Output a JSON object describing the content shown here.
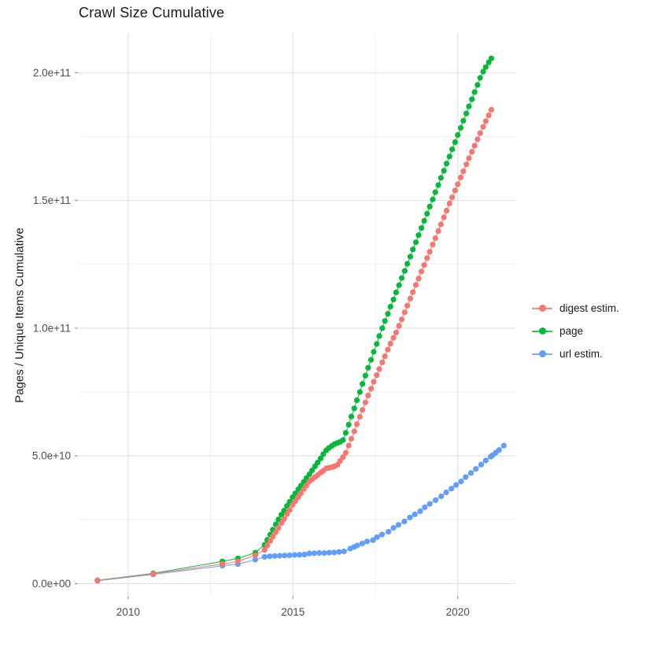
{
  "chart": {
    "title": "Crawl Size Cumulative",
    "y_axis_title": "Pages / Unique Items Cumulative"
  },
  "chart_data": {
    "type": "line",
    "title": "Crawl Size Cumulative",
    "xlabel": "",
    "ylabel": "Pages / Unique Items Cumulative",
    "grid": true,
    "legend_position": "right",
    "values_unit": "1e9",
    "xlim": [
      2008.5,
      2021.75
    ],
    "ylim_e9": [
      -4.5,
      215.5
    ],
    "x_ticks": [
      {
        "value": 2010,
        "label": "2010"
      },
      {
        "value": 2015,
        "label": "2015"
      },
      {
        "value": 2020,
        "label": "2020"
      }
    ],
    "x_minor_ticks": [
      2012.5,
      2017.5
    ],
    "y_ticks": [
      {
        "value_e9": 0,
        "label": "0.0e+00"
      },
      {
        "value_e9": 50,
        "label": "5.0e+10"
      },
      {
        "value_e9": 100,
        "label": "1.0e+11"
      },
      {
        "value_e9": 150,
        "label": "1.5e+11"
      },
      {
        "value_e9": 200,
        "label": "2.0e+11"
      }
    ],
    "y_minor_ticks_e9": [
      25,
      75,
      125,
      175
    ],
    "series": [
      {
        "name": "digest estim.",
        "color": "#F8766D",
        "points": [
          [
            2009.07,
            1.2
          ],
          [
            2010.76,
            3.8
          ],
          [
            2012.86,
            7.7
          ],
          [
            2013.33,
            8.7
          ],
          [
            2013.86,
            11.1
          ],
          [
            2014.14,
            13.2
          ],
          [
            2014.22,
            14.9
          ],
          [
            2014.31,
            16.7
          ],
          [
            2014.39,
            18.4
          ],
          [
            2014.48,
            20.2
          ],
          [
            2014.56,
            21.8
          ],
          [
            2014.65,
            23.7
          ],
          [
            2014.73,
            25.3
          ],
          [
            2014.82,
            27.2
          ],
          [
            2014.9,
            28.8
          ],
          [
            2014.99,
            30.8
          ],
          [
            2015.07,
            32.3
          ],
          [
            2015.16,
            33.9
          ],
          [
            2015.24,
            35.3
          ],
          [
            2015.33,
            37.0
          ],
          [
            2015.41,
            38.4
          ],
          [
            2015.5,
            40.0
          ],
          [
            2015.58,
            40.8
          ],
          [
            2015.67,
            41.7
          ],
          [
            2015.75,
            42.5
          ],
          [
            2015.84,
            43.4
          ],
          [
            2015.92,
            44.2
          ],
          [
            2016.01,
            45.1
          ],
          [
            2016.09,
            45.3
          ],
          [
            2016.18,
            45.6
          ],
          [
            2016.26,
            45.9
          ],
          [
            2016.35,
            46.5
          ],
          [
            2016.43,
            48.0
          ],
          [
            2016.52,
            49.5
          ],
          [
            2016.6,
            51.2
          ],
          [
            2016.69,
            54.0
          ],
          [
            2016.77,
            56.7
          ],
          [
            2016.86,
            59.6
          ],
          [
            2016.94,
            62.4
          ],
          [
            2017.03,
            65.3
          ],
          [
            2017.11,
            68.0
          ],
          [
            2017.2,
            70.9
          ],
          [
            2017.28,
            73.6
          ],
          [
            2017.37,
            76.3
          ],
          [
            2017.45,
            79.0
          ],
          [
            2017.54,
            81.6
          ],
          [
            2017.62,
            84.0
          ],
          [
            2017.71,
            86.6
          ],
          [
            2017.79,
            89.0
          ],
          [
            2017.88,
            91.6
          ],
          [
            2017.96,
            93.9
          ],
          [
            2018.05,
            96.2
          ],
          [
            2018.13,
            98.3
          ],
          [
            2018.22,
            100.9
          ],
          [
            2018.3,
            103.4
          ],
          [
            2018.39,
            106.2
          ],
          [
            2018.47,
            108.8
          ],
          [
            2018.56,
            111.6
          ],
          [
            2018.64,
            114.1
          ],
          [
            2018.73,
            116.9
          ],
          [
            2018.81,
            119.4
          ],
          [
            2018.9,
            122.2
          ],
          [
            2018.98,
            124.7
          ],
          [
            2019.07,
            127.4
          ],
          [
            2019.15,
            129.9
          ],
          [
            2019.24,
            132.7
          ],
          [
            2019.32,
            135.2
          ],
          [
            2019.41,
            138.0
          ],
          [
            2019.49,
            140.6
          ],
          [
            2019.58,
            143.4
          ],
          [
            2019.66,
            146.0
          ],
          [
            2019.75,
            148.8
          ],
          [
            2019.83,
            151.2
          ],
          [
            2019.92,
            153.9
          ],
          [
            2020.0,
            156.3
          ],
          [
            2020.09,
            159.0
          ],
          [
            2020.17,
            161.4
          ],
          [
            2020.26,
            164.1
          ],
          [
            2020.34,
            166.5
          ],
          [
            2020.43,
            169.0
          ],
          [
            2020.51,
            171.4
          ],
          [
            2020.6,
            173.9
          ],
          [
            2020.68,
            176.3
          ],
          [
            2020.77,
            178.8
          ],
          [
            2020.85,
            181.0
          ],
          [
            2020.94,
            183.3
          ],
          [
            2021.02,
            185.5
          ]
        ]
      },
      {
        "name": "page",
        "color": "#00BA38",
        "points": [
          [
            2009.07,
            1.3
          ],
          [
            2010.76,
            4.0
          ],
          [
            2012.86,
            8.7
          ],
          [
            2013.33,
            9.9
          ],
          [
            2013.86,
            12.1
          ],
          [
            2014.14,
            15.2
          ],
          [
            2014.22,
            17.1
          ],
          [
            2014.31,
            19.2
          ],
          [
            2014.39,
            21.1
          ],
          [
            2014.48,
            23.2
          ],
          [
            2014.56,
            25.1
          ],
          [
            2014.65,
            27.0
          ],
          [
            2014.73,
            28.6
          ],
          [
            2014.82,
            30.4
          ],
          [
            2014.9,
            32.0
          ],
          [
            2014.99,
            33.8
          ],
          [
            2015.07,
            35.3
          ],
          [
            2015.16,
            36.9
          ],
          [
            2015.24,
            38.3
          ],
          [
            2015.33,
            39.8
          ],
          [
            2015.41,
            41.3
          ],
          [
            2015.5,
            42.8
          ],
          [
            2015.58,
            44.3
          ],
          [
            2015.67,
            45.9
          ],
          [
            2015.75,
            47.4
          ],
          [
            2015.84,
            49.0
          ],
          [
            2015.92,
            50.7
          ],
          [
            2016.01,
            52.2
          ],
          [
            2016.09,
            53.1
          ],
          [
            2016.18,
            53.9
          ],
          [
            2016.26,
            54.6
          ],
          [
            2016.35,
            55.1
          ],
          [
            2016.43,
            55.5
          ],
          [
            2016.52,
            56.2
          ],
          [
            2016.6,
            59.0
          ],
          [
            2016.69,
            62.2
          ],
          [
            2016.77,
            65.4
          ],
          [
            2016.86,
            68.6
          ],
          [
            2016.94,
            71.8
          ],
          [
            2017.03,
            75.0
          ],
          [
            2017.11,
            78.2
          ],
          [
            2017.2,
            81.4
          ],
          [
            2017.28,
            84.5
          ],
          [
            2017.37,
            87.6
          ],
          [
            2017.45,
            90.7
          ],
          [
            2017.54,
            93.8
          ],
          [
            2017.62,
            96.9
          ],
          [
            2017.71,
            100.0
          ],
          [
            2017.79,
            102.8
          ],
          [
            2017.88,
            105.6
          ],
          [
            2017.96,
            108.4
          ],
          [
            2018.05,
            111.2
          ],
          [
            2018.13,
            114.0
          ],
          [
            2018.22,
            116.8
          ],
          [
            2018.3,
            119.6
          ],
          [
            2018.39,
            122.4
          ],
          [
            2018.47,
            125.2
          ],
          [
            2018.56,
            128.0
          ],
          [
            2018.64,
            130.8
          ],
          [
            2018.73,
            133.6
          ],
          [
            2018.81,
            136.4
          ],
          [
            2018.9,
            139.2
          ],
          [
            2018.98,
            142.0
          ],
          [
            2019.07,
            144.8
          ],
          [
            2019.15,
            147.6
          ],
          [
            2019.24,
            150.4
          ],
          [
            2019.32,
            153.2
          ],
          [
            2019.41,
            156.0
          ],
          [
            2019.49,
            158.8
          ],
          [
            2019.58,
            161.6
          ],
          [
            2019.66,
            164.4
          ],
          [
            2019.75,
            167.2
          ],
          [
            2019.83,
            170.0
          ],
          [
            2019.92,
            172.8
          ],
          [
            2020.0,
            175.6
          ],
          [
            2020.09,
            178.4
          ],
          [
            2020.17,
            181.2
          ],
          [
            2020.26,
            184.0
          ],
          [
            2020.34,
            186.8
          ],
          [
            2020.43,
            189.6
          ],
          [
            2020.51,
            192.4
          ],
          [
            2020.6,
            195.2
          ],
          [
            2020.68,
            198.0
          ],
          [
            2020.77,
            200.4
          ],
          [
            2020.85,
            202.2
          ],
          [
            2020.94,
            204.0
          ],
          [
            2021.02,
            205.6
          ]
        ]
      },
      {
        "name": "url estim.",
        "color": "#619CFF",
        "points": [
          [
            2009.07,
            1.1
          ],
          [
            2010.76,
            3.6
          ],
          [
            2012.86,
            7.0
          ],
          [
            2013.33,
            7.6
          ],
          [
            2013.86,
            9.4
          ],
          [
            2014.14,
            10.5
          ],
          [
            2014.3,
            10.7
          ],
          [
            2014.45,
            10.8
          ],
          [
            2014.6,
            10.9
          ],
          [
            2014.75,
            11.0
          ],
          [
            2014.9,
            11.1
          ],
          [
            2015.05,
            11.2
          ],
          [
            2015.2,
            11.3
          ],
          [
            2015.35,
            11.4
          ],
          [
            2015.5,
            11.8
          ],
          [
            2015.65,
            11.9
          ],
          [
            2015.8,
            12.0
          ],
          [
            2015.95,
            12.0
          ],
          [
            2016.1,
            12.1
          ],
          [
            2016.25,
            12.2
          ],
          [
            2016.4,
            12.4
          ],
          [
            2016.55,
            12.6
          ],
          [
            2016.74,
            13.7
          ],
          [
            2016.85,
            14.3
          ],
          [
            2016.95,
            14.9
          ],
          [
            2017.1,
            15.7
          ],
          [
            2017.25,
            16.5
          ],
          [
            2017.43,
            17.0
          ],
          [
            2017.55,
            18.2
          ],
          [
            2017.7,
            19.2
          ],
          [
            2017.9,
            20.3
          ],
          [
            2018.05,
            21.8
          ],
          [
            2018.2,
            23.0
          ],
          [
            2018.38,
            24.3
          ],
          [
            2018.55,
            25.9
          ],
          [
            2018.7,
            27.1
          ],
          [
            2018.86,
            28.3
          ],
          [
            2019.0,
            29.9
          ],
          [
            2019.15,
            31.2
          ],
          [
            2019.33,
            32.7
          ],
          [
            2019.5,
            34.2
          ],
          [
            2019.65,
            35.7
          ],
          [
            2019.81,
            37.2
          ],
          [
            2019.95,
            38.6
          ],
          [
            2020.1,
            40.0
          ],
          [
            2020.24,
            41.7
          ],
          [
            2020.4,
            43.3
          ],
          [
            2020.55,
            44.9
          ],
          [
            2020.71,
            46.6
          ],
          [
            2020.85,
            48.2
          ],
          [
            2021.0,
            49.7
          ],
          [
            2021.05,
            50.2
          ],
          [
            2021.15,
            51.2
          ],
          [
            2021.25,
            52.3
          ],
          [
            2021.4,
            54.0
          ]
        ]
      }
    ]
  }
}
